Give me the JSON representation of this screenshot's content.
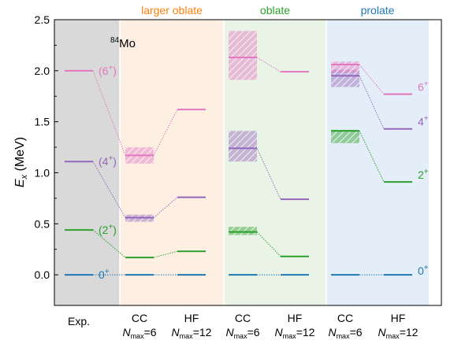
{
  "chart_data": {
    "type": "level-scheme",
    "nucleus": {
      "mass": "84",
      "element": "Mo"
    },
    "ylabel": {
      "symbol": "E",
      "sub": "x",
      "unit": " (MeV)"
    },
    "ylim": [
      -0.3,
      2.5
    ],
    "yticks": [
      0.0,
      0.5,
      1.0,
      1.5,
      2.0,
      2.5
    ],
    "ytick_labels": [
      "0.0",
      "0.5",
      "1.0",
      "1.5",
      "2.0",
      "2.5"
    ],
    "regions": [
      {
        "title": "",
        "color": "#d9d9d9",
        "title_color": "#000000"
      },
      {
        "title": "larger oblate",
        "color": "#fdf0e3",
        "title_color": "#ff7f0e"
      },
      {
        "title": "oblate",
        "color": "#eaf4e6",
        "title_color": "#2ca02c"
      },
      {
        "title": "prolate",
        "color": "#e4eef8",
        "title_color": "#1f77b4"
      }
    ],
    "columns": [
      {
        "label": "Exp.",
        "region": 0
      },
      {
        "label": "CC",
        "nmax": "=6",
        "region": 1
      },
      {
        "label": "HF",
        "nmax": "=12",
        "region": 1
      },
      {
        "label": "CC",
        "nmax": "=6",
        "region": 2
      },
      {
        "label": "HF",
        "nmax": "=12",
        "region": 2
      },
      {
        "label": "CC",
        "nmax": "=6",
        "region": 3
      },
      {
        "label": "HF",
        "nmax": "=12",
        "region": 3
      }
    ],
    "nmax_symbol": "N",
    "nmax_sub": "max",
    "states": [
      {
        "name": "0+",
        "color": "#1f77b4",
        "levels": [
          0.0,
          0.0,
          0.0,
          0.0,
          0.0,
          0.0,
          0.0
        ],
        "bands": [
          null,
          null,
          null,
          null,
          null,
          null,
          null
        ]
      },
      {
        "name": "2+",
        "color": "#2ca02c",
        "levels": [
          0.44,
          0.17,
          0.23,
          0.42,
          0.18,
          1.41,
          0.91
        ],
        "bands": [
          null,
          null,
          null,
          [
            0.39,
            0.47
          ],
          null,
          [
            1.29,
            1.42
          ],
          null
        ]
      },
      {
        "name": "4+",
        "color": "#9467bd",
        "levels": [
          1.11,
          0.56,
          0.76,
          1.24,
          0.74,
          1.95,
          1.43
        ],
        "bands": [
          null,
          [
            0.52,
            0.59
          ],
          null,
          [
            1.11,
            1.41
          ],
          null,
          [
            1.84,
            2.01
          ],
          null
        ]
      },
      {
        "name": "6+",
        "color": "#e377c2",
        "levels": [
          2.0,
          1.17,
          1.62,
          2.13,
          1.99,
          2.06,
          1.77
        ],
        "bands": [
          null,
          [
            1.09,
            1.25
          ],
          null,
          [
            1.91,
            2.39
          ],
          null,
          [
            1.98,
            2.09
          ],
          null
        ]
      }
    ],
    "exp_labels": [
      "0",
      "(2",
      "(4",
      "(6"
    ],
    "exp_label_suffix": ")",
    "prolate_labels": [
      "0",
      "2",
      "4",
      "6"
    ],
    "exp_label_sup": "+",
    "grid": false
  }
}
